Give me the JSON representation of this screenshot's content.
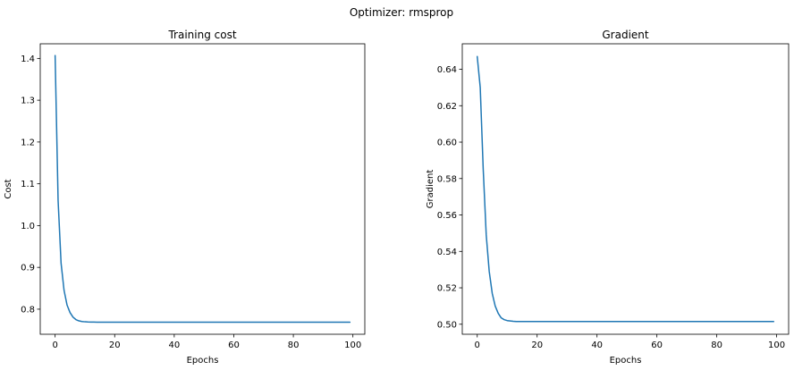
{
  "figure": {
    "suptitle": "Optimizer: rmsprop"
  },
  "chart_data": [
    {
      "type": "line",
      "title": "Training cost",
      "xlabel": "Epochs",
      "ylabel": "Cost",
      "xlim": [
        -5,
        104
      ],
      "ylim": [
        0.74,
        1.435
      ],
      "xticks": [
        0,
        20,
        40,
        60,
        80,
        100
      ],
      "xtick_labels": [
        "0",
        "20",
        "40",
        "60",
        "80",
        "100"
      ],
      "yticks": [
        0.8,
        0.9,
        1.0,
        1.1,
        1.2,
        1.3,
        1.4
      ],
      "ytick_labels": [
        "0.8",
        "0.9",
        "1.0",
        "1.1",
        "1.2",
        "1.3",
        "1.4"
      ],
      "grid": false,
      "color": "#1f77b4",
      "series": [
        {
          "name": "",
          "x": [
            0,
            1,
            2,
            3,
            4,
            5,
            6,
            7,
            8,
            9,
            10,
            11,
            12,
            13,
            14,
            15,
            16,
            18,
            20,
            25,
            30,
            40,
            50,
            60,
            70,
            80,
            90,
            99
          ],
          "y": [
            1.407,
            1.06,
            0.91,
            0.845,
            0.81,
            0.792,
            0.781,
            0.775,
            0.772,
            0.7705,
            0.7698,
            0.7694,
            0.7692,
            0.7691,
            0.769,
            0.769,
            0.769,
            0.769,
            0.769,
            0.769,
            0.769,
            0.769,
            0.769,
            0.769,
            0.769,
            0.769,
            0.769,
            0.769
          ]
        }
      ]
    },
    {
      "type": "line",
      "title": "Gradient",
      "xlabel": "Epochs",
      "ylabel": "Gradient",
      "xlim": [
        -5,
        104
      ],
      "ylim": [
        0.4945,
        0.654
      ],
      "xticks": [
        0,
        20,
        40,
        60,
        80,
        100
      ],
      "xtick_labels": [
        "0",
        "20",
        "40",
        "60",
        "80",
        "100"
      ],
      "yticks": [
        0.5,
        0.52,
        0.54,
        0.56,
        0.58,
        0.6,
        0.62,
        0.64
      ],
      "ytick_labels": [
        "0.50",
        "0.52",
        "0.54",
        "0.56",
        "0.58",
        "0.60",
        "0.62",
        "0.64"
      ],
      "grid": false,
      "color": "#1f77b4",
      "series": [
        {
          "name": "",
          "x": [
            0,
            1,
            2,
            3,
            4,
            5,
            6,
            7,
            8,
            9,
            10,
            11,
            12,
            13,
            14,
            15,
            16,
            18,
            20,
            25,
            30,
            40,
            50,
            60,
            70,
            80,
            90,
            99
          ],
          "y": [
            0.647,
            0.63,
            0.585,
            0.549,
            0.529,
            0.517,
            0.51,
            0.506,
            0.5035,
            0.5025,
            0.502,
            0.5018,
            0.5016,
            0.5015,
            0.5015,
            0.5015,
            0.5015,
            0.5015,
            0.5015,
            0.5015,
            0.5015,
            0.5015,
            0.5015,
            0.5015,
            0.5015,
            0.5015,
            0.5015,
            0.5015
          ]
        }
      ]
    }
  ]
}
